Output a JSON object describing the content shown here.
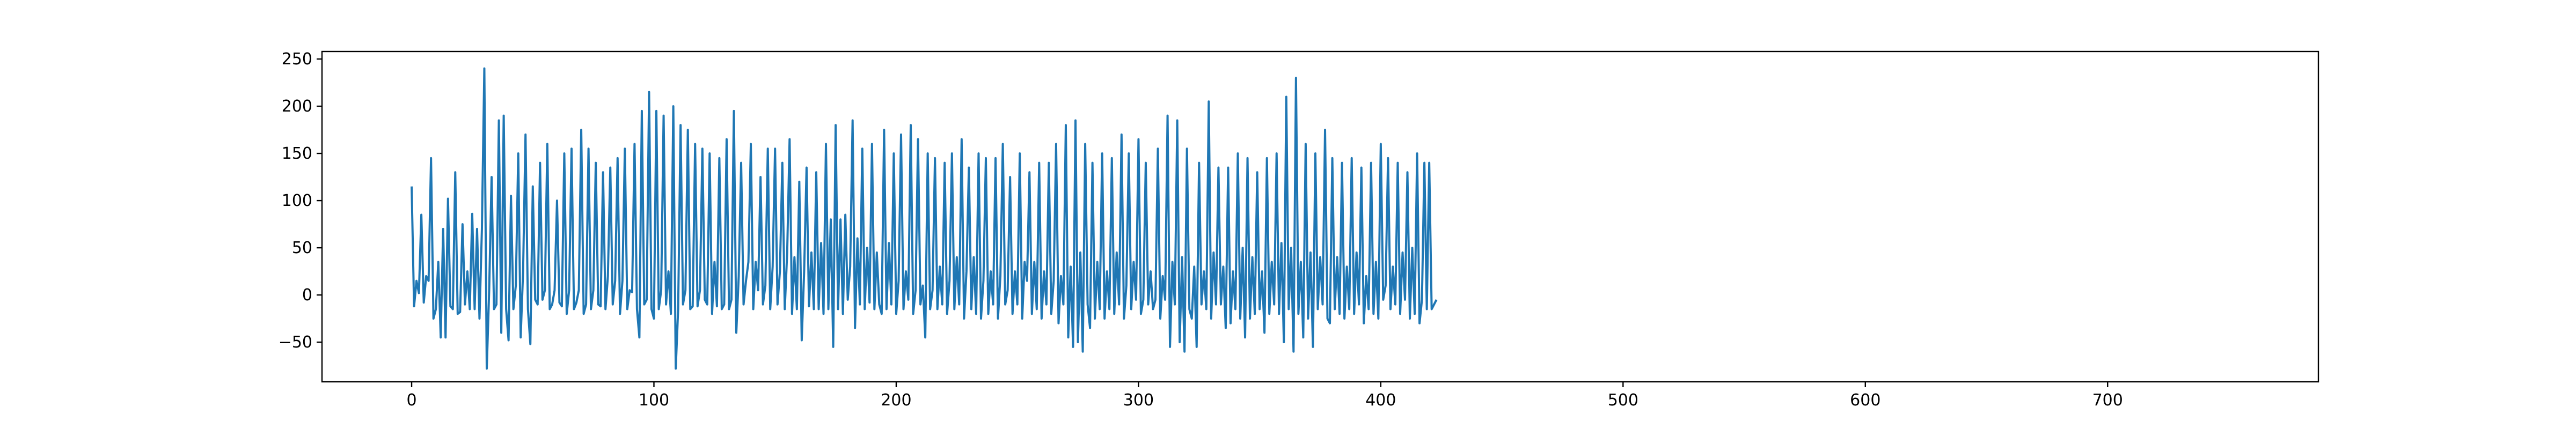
{
  "chart_data": {
    "type": "line",
    "title": "",
    "xlabel": "",
    "ylabel": "",
    "xlim": [
      -37,
      787
    ],
    "ylim": [
      -92,
      258
    ],
    "x_ticks": [
      0,
      100,
      200,
      300,
      400,
      500,
      600,
      700
    ],
    "y_ticks": [
      -50,
      0,
      50,
      100,
      150,
      200,
      250
    ],
    "grid": false,
    "legend": "none",
    "series_color": "#1f77b4",
    "series": [
      {
        "x_start": 0,
        "x_step": 1,
        "values": [
          115,
          -12,
          15,
          2,
          85,
          -8,
          20,
          15,
          145,
          -25,
          -15,
          35,
          -45,
          70,
          -45,
          102,
          -12,
          -15,
          130,
          -20,
          -18,
          75,
          -10,
          25,
          -15,
          86,
          -15,
          70,
          -25,
          70,
          240,
          -78,
          5,
          125,
          -15,
          -10,
          185,
          -40,
          190,
          -15,
          -48,
          105,
          -15,
          10,
          150,
          -45,
          25,
          170,
          -15,
          -52,
          115,
          -5,
          -10,
          140,
          -5,
          5,
          160,
          -15,
          -10,
          5,
          100,
          -8,
          -12,
          150,
          -20,
          5,
          155,
          -15,
          -8,
          5,
          175,
          -20,
          -10,
          155,
          -15,
          5,
          140,
          -10,
          -12,
          130,
          -15,
          20,
          135,
          -10,
          15,
          145,
          -20,
          15,
          155,
          -15,
          5,
          3,
          160,
          -15,
          -45,
          195,
          -10,
          -5,
          215,
          -15,
          -25,
          195,
          -15,
          5,
          190,
          -10,
          25,
          -20,
          200,
          -78,
          -15,
          180,
          -10,
          5,
          175,
          -15,
          -12,
          160,
          -12,
          5,
          155,
          -5,
          -10,
          150,
          -20,
          35,
          -12,
          145,
          -15,
          -10,
          165,
          -15,
          -5,
          195,
          -40,
          20,
          140,
          -10,
          15,
          35,
          160,
          -15,
          35,
          5,
          125,
          -10,
          10,
          155,
          -15,
          30,
          155,
          -10,
          25,
          140,
          -15,
          45,
          165,
          -20,
          40,
          -15,
          120,
          -48,
          25,
          135,
          -12,
          45,
          -15,
          130,
          -15,
          55,
          -20,
          160,
          -15,
          80,
          -55,
          180,
          -15,
          80,
          -20,
          85,
          -5,
          30,
          185,
          -35,
          60,
          -10,
          155,
          -15,
          50,
          -8,
          160,
          -15,
          45,
          -10,
          -20,
          175,
          -15,
          55,
          -10,
          150,
          -20,
          15,
          170,
          -15,
          25,
          -5,
          180,
          -20,
          5,
          165,
          -10,
          10,
          -45,
          150,
          -15,
          5,
          145,
          -15,
          30,
          -10,
          140,
          -20,
          15,
          150,
          -15,
          40,
          -10,
          165,
          -25,
          25,
          135,
          -15,
          40,
          -20,
          150,
          -25,
          15,
          145,
          -20,
          25,
          -10,
          145,
          -25,
          20,
          160,
          -10,
          5,
          125,
          -20,
          25,
          -10,
          150,
          -25,
          35,
          15,
          130,
          -20,
          35,
          -15,
          140,
          -25,
          25,
          -10,
          140,
          -20,
          15,
          160,
          -30,
          20,
          -10,
          180,
          -45,
          30,
          -55,
          185,
          -50,
          45,
          -60,
          160,
          -10,
          -35,
          140,
          -25,
          35,
          -15,
          150,
          -25,
          25,
          -15,
          145,
          -20,
          45,
          -10,
          170,
          -25,
          10,
          150,
          -15,
          35,
          -5,
          165,
          -20,
          -5,
          140,
          -10,
          25,
          -15,
          -5,
          155,
          -25,
          20,
          -5,
          190,
          -55,
          35,
          -10,
          185,
          -50,
          40,
          -60,
          155,
          -15,
          -25,
          30,
          -55,
          140,
          -10,
          25,
          -15,
          205,
          -25,
          45,
          -10,
          135,
          -10,
          30,
          -35,
          135,
          -30,
          25,
          -15,
          150,
          -25,
          50,
          -45,
          145,
          -25,
          40,
          -20,
          130,
          -15,
          25,
          -40,
          145,
          -20,
          35,
          -10,
          150,
          -20,
          55,
          -50,
          210,
          -15,
          50,
          -60,
          230,
          -20,
          35,
          -45,
          160,
          -25,
          45,
          -55,
          150,
          -15,
          40,
          -10,
          175,
          -25,
          -30,
          145,
          -15,
          40,
          -20,
          140,
          -25,
          30,
          -15,
          145,
          -20,
          45,
          -10,
          135,
          -30,
          20,
          -15,
          140,
          -20,
          35,
          -25,
          160,
          -5,
          10,
          145,
          -15,
          30,
          -10,
          140,
          -20,
          45,
          -5,
          130,
          -25,
          50,
          -20,
          150,
          -30,
          -5,
          140,
          -15,
          140,
          -15,
          -10,
          -5
        ]
      }
    ]
  }
}
